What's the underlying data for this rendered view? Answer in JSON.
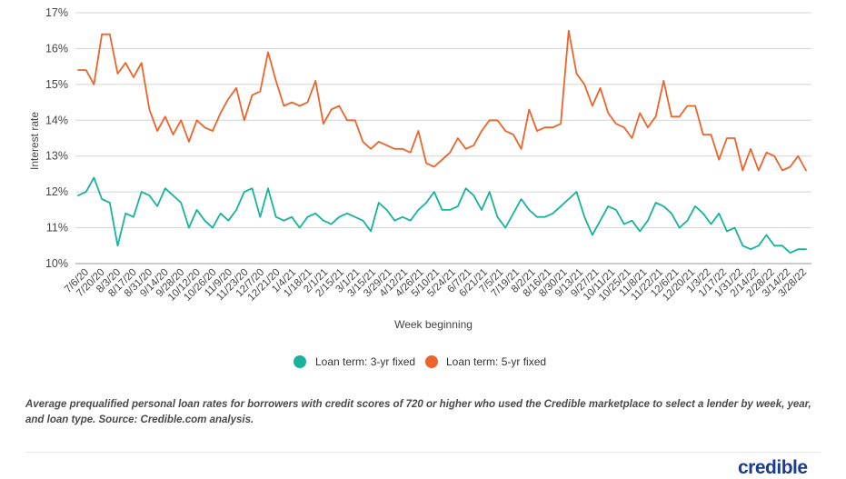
{
  "chart_data": {
    "type": "line",
    "title": "",
    "xlabel": "Week beginning",
    "ylabel": "Interest rate",
    "ylim": [
      10,
      17
    ],
    "y_ticks": [
      "10%",
      "11%",
      "12%",
      "13%",
      "14%",
      "15%",
      "16%",
      "17%"
    ],
    "grid": "horizontal",
    "legend_position": "bottom-center",
    "x_tick_labels": [
      "7/6/20",
      "7/20/20",
      "8/3/20",
      "8/17/20",
      "8/31/20",
      "9/14/20",
      "9/28/20",
      "10/12/20",
      "10/26/20",
      "11/9/20",
      "11/23/20",
      "12/7/20",
      "12/21/20",
      "1/4/21",
      "1/18/21",
      "2/1/21",
      "2/15/21",
      "3/1/21",
      "3/15/21",
      "3/29/21",
      "4/12/21",
      "4/26/21",
      "5/10/21",
      "5/24/21",
      "6/7/21",
      "6/21/21",
      "7/5/21",
      "7/19/21",
      "8/2/21",
      "8/16/21",
      "8/30/21",
      "9/13/21",
      "9/27/21",
      "10/11/21",
      "10/25/21",
      "11/8/21",
      "11/22/21",
      "12/6/21",
      "12/20/21",
      "1/3/22",
      "1/17/22",
      "1/31/22",
      "2/14/22",
      "2/28/22",
      "3/14/22",
      "3/28/22"
    ],
    "series": [
      {
        "name": "Loan term: 3-yr fixed",
        "color": "#17b39b",
        "values": [
          11.9,
          12.0,
          12.4,
          11.8,
          11.7,
          10.5,
          11.4,
          11.3,
          12.0,
          11.9,
          11.6,
          12.1,
          11.9,
          11.7,
          11.0,
          11.5,
          11.2,
          11.0,
          11.4,
          11.2,
          11.5,
          12.0,
          12.1,
          11.3,
          12.1,
          11.3,
          11.2,
          11.3,
          11.0,
          11.3,
          11.4,
          11.2,
          11.1,
          11.3,
          11.4,
          11.3,
          11.2,
          10.9,
          11.7,
          11.5,
          11.2,
          11.3,
          11.2,
          11.5,
          11.7,
          12.0,
          11.5,
          11.5,
          11.6,
          12.1,
          11.9,
          11.5,
          12.0,
          11.3,
          11.0,
          11.4,
          11.8,
          11.5,
          11.3,
          11.3,
          11.4,
          11.6,
          11.8,
          12.0,
          11.3,
          10.8,
          11.2,
          11.6,
          11.5,
          11.1,
          11.2,
          10.9,
          11.2,
          11.7,
          11.6,
          11.4,
          11.0,
          11.2,
          11.6,
          11.4,
          11.1,
          11.4,
          10.9,
          11.0,
          10.5,
          10.4,
          10.5,
          10.8,
          10.5,
          10.5,
          10.3,
          10.4,
          10.4
        ]
      },
      {
        "name": "Loan term: 5-yr fixed",
        "color": "#ec642b",
        "values": [
          15.4,
          15.4,
          15.0,
          16.4,
          16.4,
          15.3,
          15.6,
          15.2,
          15.6,
          14.3,
          13.7,
          14.1,
          13.6,
          14.0,
          13.4,
          14.0,
          13.8,
          13.7,
          14.2,
          14.6,
          14.9,
          14.0,
          14.7,
          14.8,
          15.9,
          15.1,
          14.4,
          14.5,
          14.4,
          14.5,
          15.1,
          13.9,
          14.3,
          14.4,
          14.0,
          14.0,
          13.4,
          13.2,
          13.4,
          13.3,
          13.2,
          13.2,
          13.1,
          13.7,
          12.8,
          12.7,
          12.9,
          13.1,
          13.5,
          13.2,
          13.3,
          13.7,
          14.0,
          14.0,
          13.7,
          13.6,
          13.2,
          14.3,
          13.7,
          13.8,
          13.8,
          13.9,
          16.5,
          15.3,
          15.0,
          14.4,
          14.9,
          14.2,
          13.9,
          13.8,
          13.5,
          14.2,
          13.8,
          14.1,
          15.1,
          14.1,
          14.1,
          14.4,
          14.4,
          13.6,
          13.6,
          12.9,
          13.5,
          13.5,
          12.6,
          13.2,
          12.6,
          13.1,
          13.0,
          12.6,
          12.7,
          13.0,
          12.6
        ]
      }
    ]
  },
  "caption": "Average prequalified personal loan rates for borrowers with credit scores of 720 or higher who used the Credible marketplace to select a lender by week, year, and loan type. Source: Credible.com analysis.",
  "brand": "credible"
}
